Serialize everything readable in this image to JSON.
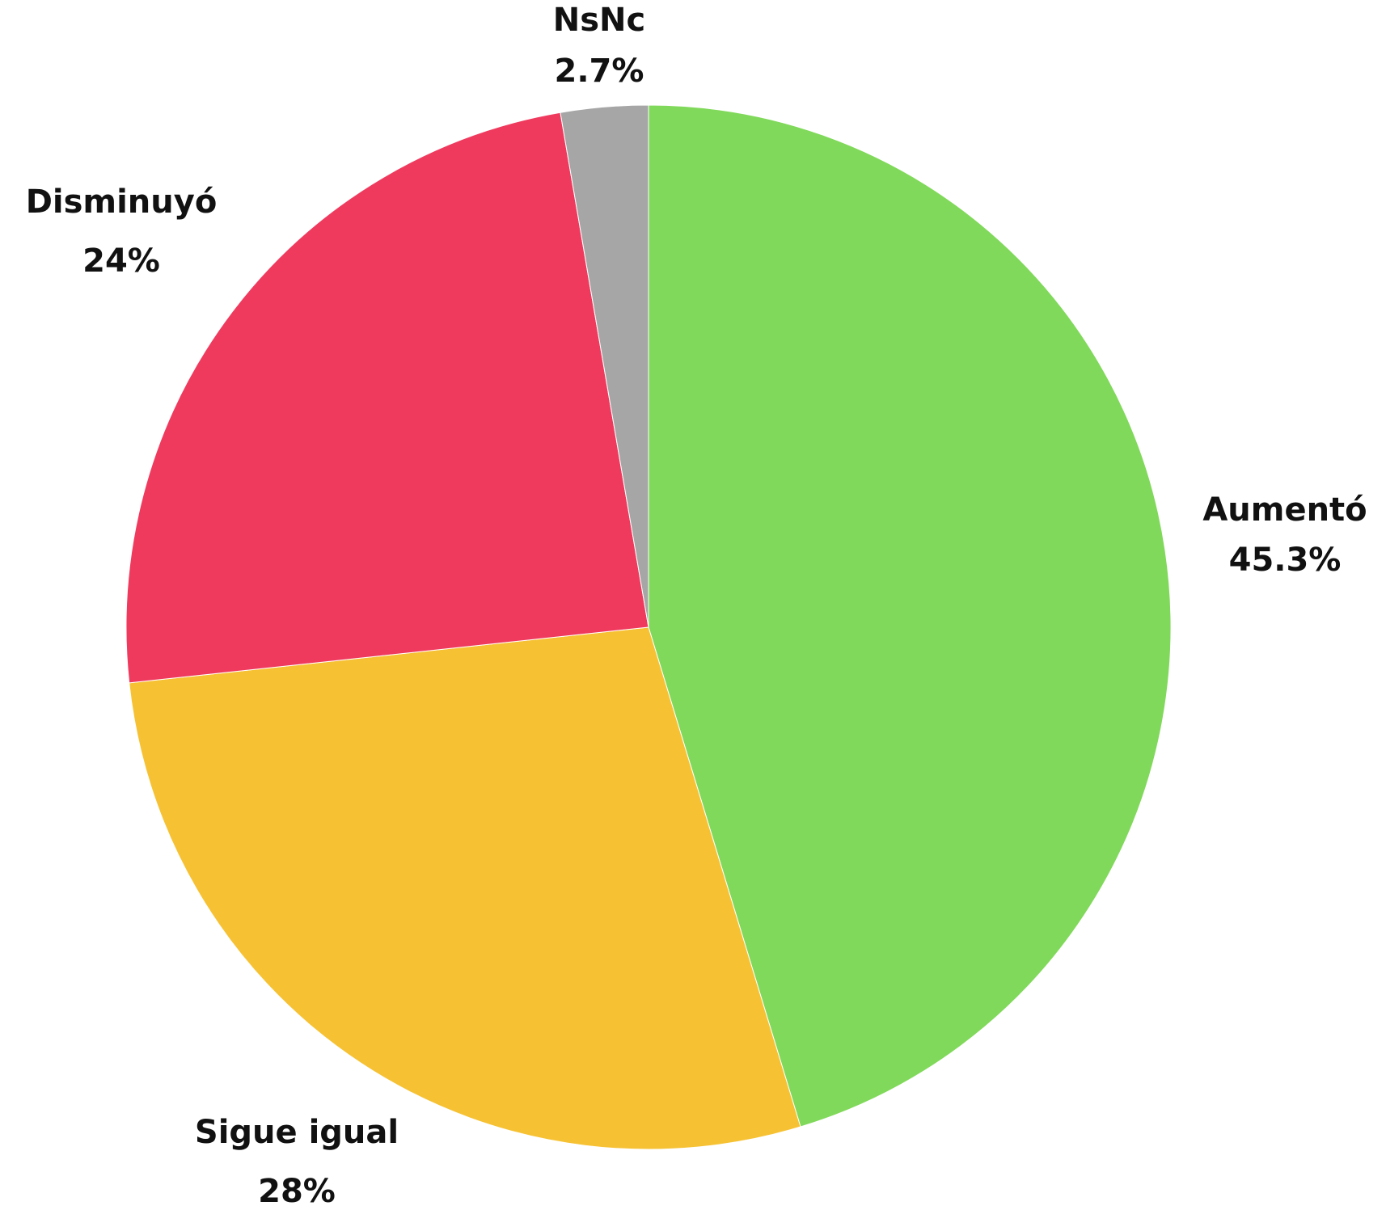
{
  "chart_data": {
    "type": "pie",
    "categories": [
      "Aumentó",
      "Sigue igual",
      "Disminuyó",
      "NsNc"
    ],
    "values": [
      45.3,
      28,
      24,
      2.7
    ],
    "value_labels": [
      "45.3%",
      "28%",
      "24%",
      "2.7%"
    ],
    "colors": [
      "#80d95a",
      "#f6c234",
      "#ef3a5e",
      "#a6a6a6"
    ]
  }
}
